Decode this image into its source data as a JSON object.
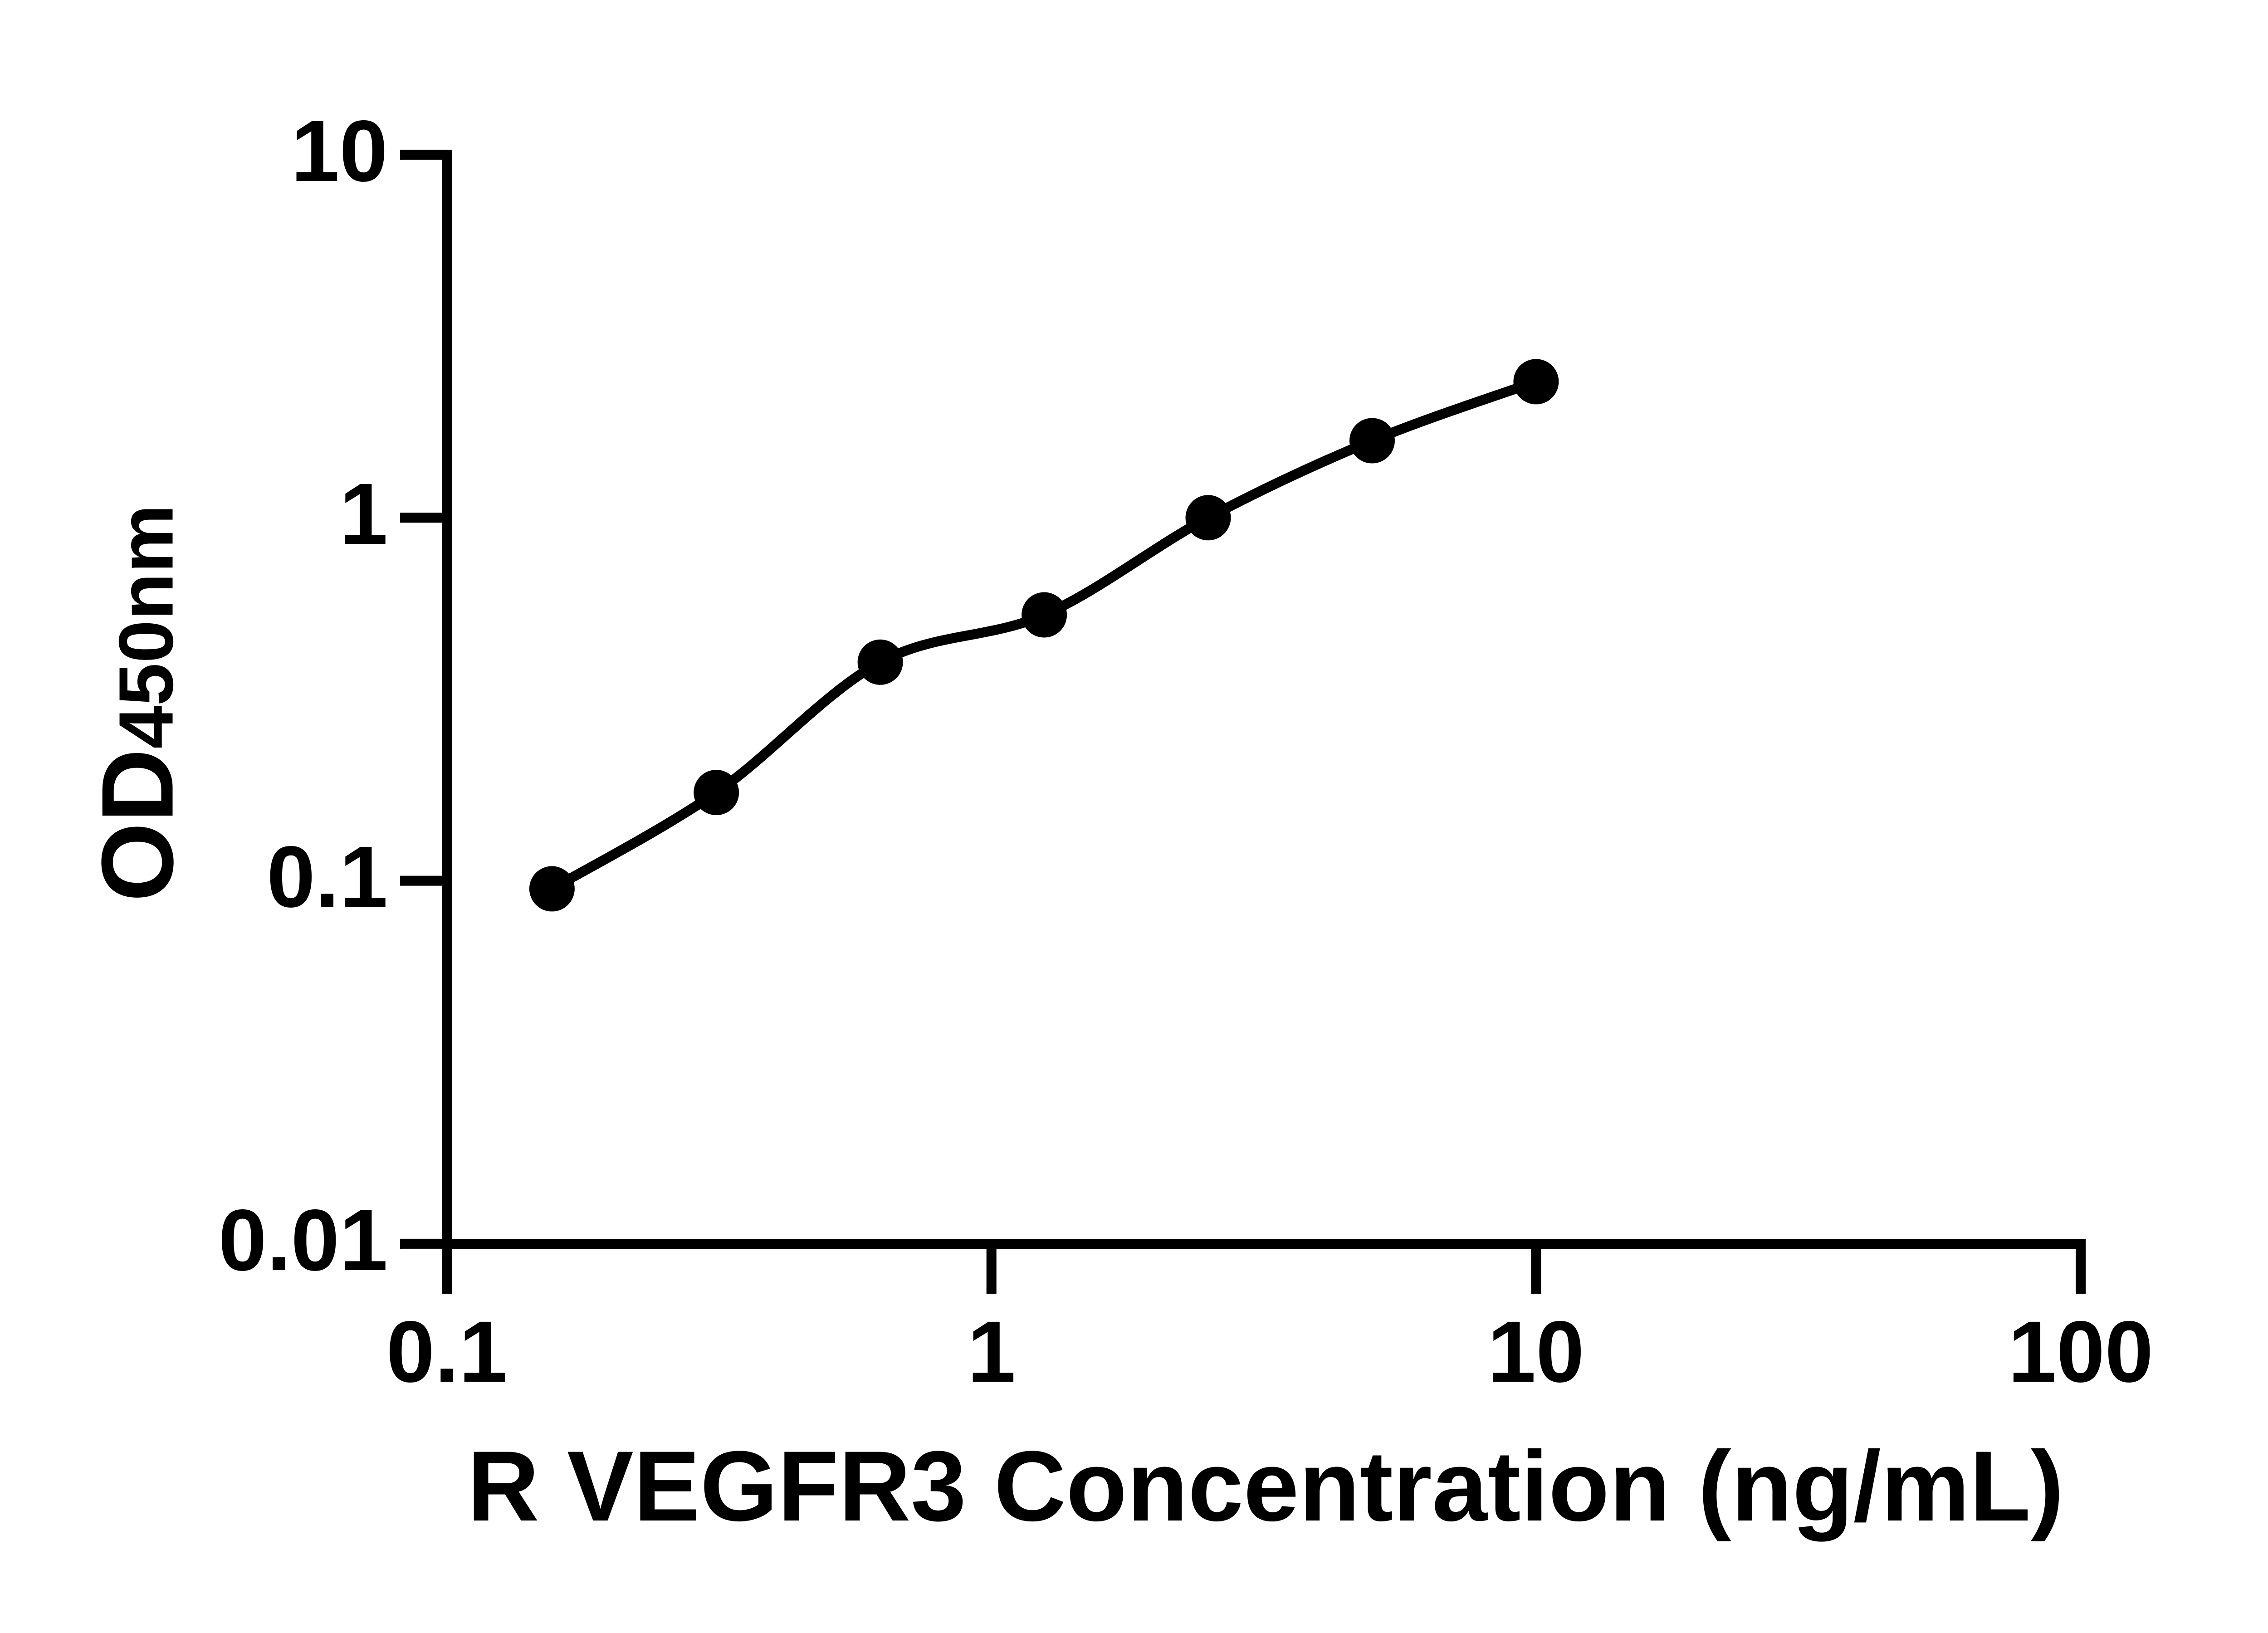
{
  "figure": {
    "background_color": "#ffffff",
    "axis_color": "#000000"
  },
  "chart_data": {
    "type": "scatter",
    "title": "",
    "xlabel": "R VEGFR3 Concentration (ng/mL)",
    "ylabel_main": "OD",
    "ylabel_sub": "450nm",
    "x_scale": "log10",
    "y_scale": "log10",
    "xlim": [
      0.1,
      100
    ],
    "ylim": [
      0.01,
      10
    ],
    "grid": false,
    "legend": "none",
    "marker": "filled-circle",
    "marker_color": "#000000",
    "line_color": "#000000",
    "x": [
      0.156,
      0.3125,
      0.625,
      1.25,
      2.5,
      5,
      10
    ],
    "y": [
      0.095,
      0.175,
      0.4,
      0.54,
      1.0,
      1.63,
      2.37
    ],
    "xtick_values": [
      0.1,
      1,
      10,
      100
    ],
    "xtick_labels": [
      "0.1",
      "1",
      "10",
      "100"
    ],
    "ytick_values": [
      10,
      1,
      0.1,
      0.01
    ],
    "ytick_labels": [
      "10",
      "1",
      "0.1",
      "0.01"
    ]
  }
}
